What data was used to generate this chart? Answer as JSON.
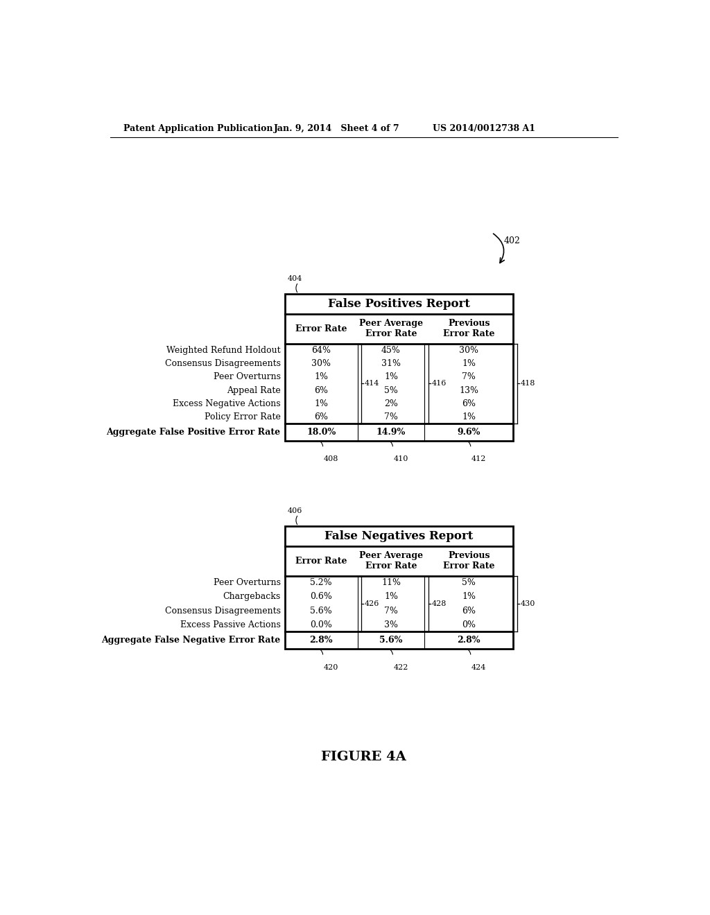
{
  "header_left": "Patent Application Publication",
  "header_mid": "Jan. 9, 2014   Sheet 4 of 7",
  "header_right": "US 2014/0012738 A1",
  "figure_label": "FIGURE 4A",
  "arrow_label": "402",
  "table1_label": "404",
  "table2_label": "406",
  "table1_title": "False Positives Report",
  "col_header1": "Error Rate",
  "col_header2": "Peer Average\nError Rate",
  "col_header3": "Previous\nError Rate",
  "table1_rows": [
    [
      "Weighted Refund Holdout",
      "64%",
      "45%",
      "30%"
    ],
    [
      "Consensus Disagreements",
      "30%",
      "31%",
      "1%"
    ],
    [
      "Peer Overturns",
      "1%",
      "1%",
      "7%"
    ],
    [
      "Appeal Rate",
      "6%",
      "5%",
      "13%"
    ],
    [
      "Excess Negative Actions",
      "1%",
      "2%",
      "6%"
    ],
    [
      "Policy Error Rate",
      "6%",
      "7%",
      "1%"
    ]
  ],
  "table1_footer": [
    "Aggregate False Positive Error Rate",
    "18.0%",
    "14.9%",
    "9.6%"
  ],
  "table1_col_labels": [
    "408",
    "410",
    "412"
  ],
  "table1_brace_labels": [
    "414",
    "416",
    "418"
  ],
  "table2_title": "False Negatives Report",
  "table2_rows": [
    [
      "Peer Overturns",
      "5.2%",
      "11%",
      "5%"
    ],
    [
      "Chargebacks",
      "0.6%",
      "1%",
      "1%"
    ],
    [
      "Consensus Disagreements",
      "5.6%",
      "7%",
      "6%"
    ],
    [
      "Excess Passive Actions",
      "0.0%",
      "3%",
      "0%"
    ]
  ],
  "table2_footer": [
    "Aggregate False Negative Error Rate",
    "2.8%",
    "5.6%",
    "2.8%"
  ],
  "table2_col_labels": [
    "420",
    "422",
    "424"
  ],
  "table2_brace_labels": [
    "426",
    "428",
    "430"
  ],
  "bg_color": "#ffffff",
  "line_color": "#000000",
  "text_color": "#000000"
}
